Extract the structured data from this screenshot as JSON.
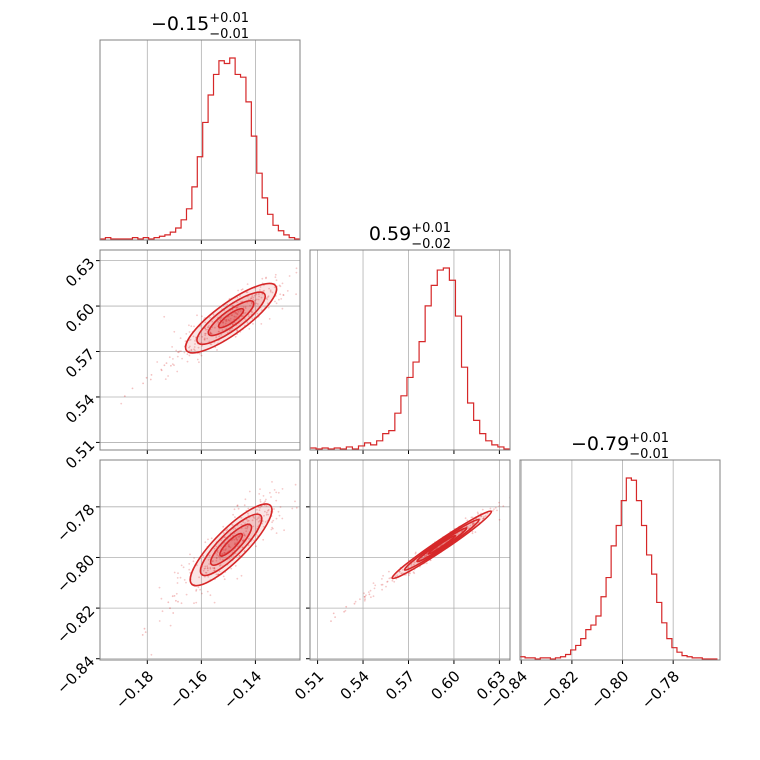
{
  "chart_data": {
    "type": "corner",
    "color": "#d62728",
    "parameters": [
      {
        "title": {
          "median": "−0.15",
          "plus": "+0.01",
          "minus": "−0.01"
        },
        "range": [
          -0.1975,
          -0.1235
        ],
        "ticks": [
          -0.18,
          -0.16,
          -0.14
        ],
        "tick_labels": [
          "−0.18",
          "−0.16",
          "−0.14"
        ],
        "hist_x": [
          -0.1965,
          -0.1945,
          -0.1925,
          -0.1905,
          -0.1885,
          -0.1865,
          -0.1845,
          -0.1825,
          -0.1805,
          -0.1785,
          -0.1765,
          -0.1745,
          -0.1725,
          -0.1705,
          -0.1685,
          -0.1665,
          -0.1645,
          -0.1625,
          -0.1605,
          -0.1585,
          -0.1565,
          -0.1545,
          -0.1525,
          -0.1505,
          -0.1485,
          -0.1465,
          -0.1445,
          -0.1425,
          -0.1405,
          -0.1385,
          -0.1365,
          -0.1345,
          -0.1325,
          -0.1305,
          -0.1285,
          -0.1265,
          -0.1245
        ],
        "hist_counts": [
          0,
          1,
          0,
          0,
          0,
          0,
          1,
          0,
          1,
          0,
          1,
          2,
          3,
          5,
          8,
          14,
          22,
          38,
          60,
          85,
          105,
          120,
          130,
          128,
          132,
          120,
          118,
          100,
          75,
          48,
          30,
          18,
          10,
          6,
          3,
          1,
          0
        ]
      },
      {
        "title": {
          "median": "0.59",
          "plus": "+0.01",
          "minus": "−0.02"
        },
        "range": [
          0.505,
          0.637
        ],
        "ticks": [
          0.51,
          0.54,
          0.57,
          0.6,
          0.63
        ],
        "tick_labels": [
          "0.51",
          "0.54",
          "0.57",
          "0.60",
          "0.63"
        ],
        "hist_x": [
          0.507,
          0.511,
          0.515,
          0.519,
          0.523,
          0.527,
          0.531,
          0.535,
          0.539,
          0.543,
          0.547,
          0.551,
          0.555,
          0.559,
          0.563,
          0.567,
          0.571,
          0.575,
          0.579,
          0.583,
          0.587,
          0.591,
          0.595,
          0.599,
          0.603,
          0.607,
          0.611,
          0.615,
          0.619,
          0.623,
          0.627,
          0.631,
          0.635
        ],
        "hist_counts": [
          1,
          0,
          1,
          0,
          1,
          0,
          2,
          0,
          3,
          6,
          4,
          8,
          15,
          18,
          35,
          52,
          70,
          85,
          105,
          140,
          160,
          175,
          177,
          165,
          130,
          80,
          45,
          28,
          15,
          8,
          4,
          2,
          0
        ]
      },
      {
        "title": {
          "median": "−0.79",
          "plus": "+0.01",
          "minus": "−0.01"
        },
        "range": [
          -0.8405,
          -0.7615
        ],
        "ticks": [
          -0.84,
          -0.82,
          -0.8,
          -0.78
        ],
        "tick_labels": [
          "−0.84",
          "−0.82",
          "−0.80",
          "−0.78"
        ],
        "hist_x": [
          -0.8395,
          -0.8375,
          -0.8355,
          -0.8335,
          -0.8315,
          -0.8295,
          -0.8275,
          -0.8255,
          -0.8235,
          -0.8215,
          -0.8195,
          -0.8175,
          -0.8155,
          -0.8135,
          -0.8115,
          -0.8095,
          -0.8075,
          -0.8055,
          -0.8035,
          -0.8015,
          -0.7995,
          -0.7975,
          -0.7955,
          -0.7935,
          -0.7915,
          -0.7895,
          -0.7875,
          -0.7855,
          -0.7835,
          -0.7815,
          -0.7795,
          -0.7775,
          -0.7755,
          -0.7735,
          -0.7715,
          -0.7695,
          -0.7675,
          -0.7655,
          -0.7635
        ],
        "hist_counts": [
          2,
          1,
          1,
          0,
          1,
          1,
          0,
          1,
          2,
          4,
          8,
          12,
          18,
          26,
          30,
          38,
          55,
          72,
          100,
          118,
          140,
          160,
          158,
          140,
          118,
          92,
          75,
          50,
          32,
          18,
          10,
          6,
          3,
          2,
          1,
          1,
          0,
          0,
          0
        ]
      }
    ],
    "pairs": [
      {
        "row": 1,
        "col": 0,
        "center": [
          -0.149,
          0.592
        ],
        "angle_deg": 36,
        "sd_major": [
          0.0095,
          0.019
        ],
        "sd_minor_frac": 0.28,
        "contour_scales": [
          0.55,
          1.0,
          1.5,
          2.0
        ]
      },
      {
        "row": 2,
        "col": 0,
        "center": [
          -0.149,
          -0.795
        ],
        "angle_deg": 45,
        "sd_major": [
          0.009,
          0.012
        ],
        "sd_minor_frac": 0.28,
        "contour_scales": [
          0.55,
          1.0,
          1.5,
          2.0
        ]
      },
      {
        "row": 2,
        "col": 1,
        "center": [
          0.592,
          -0.795
        ],
        "angle_deg": 34,
        "sd_major": [
          0.019,
          0.012
        ],
        "sd_minor_frac": 0.09,
        "contour_scales": [
          0.55,
          1.0,
          1.5,
          2.0
        ]
      }
    ],
    "grid": true
  }
}
